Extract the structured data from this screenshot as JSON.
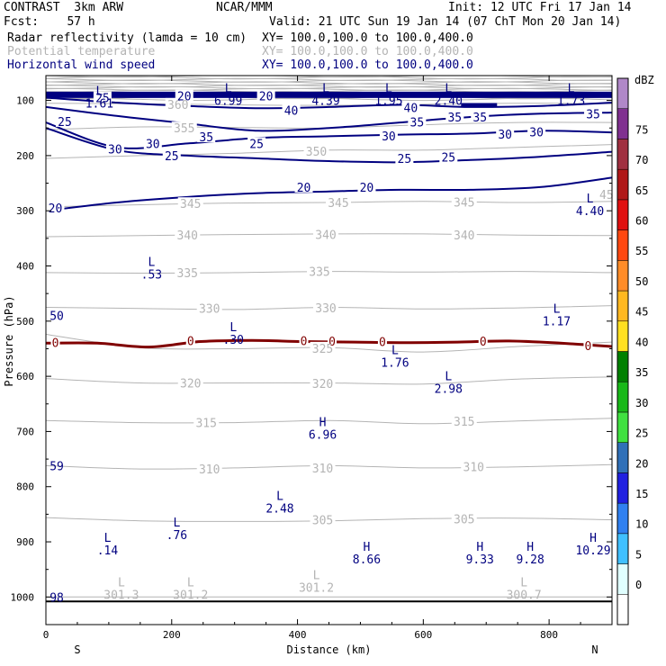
{
  "header": {
    "model": "CONTRAST  3km ARW",
    "center": "NCAR/MMM",
    "init": "Init: 12 UTC Fri 17 Jan 14",
    "fcst": "Fcst:    57 h",
    "valid": "Valid: 21 UTC Sun 19 Jan 14 (07 ChT Mon 20 Jan 14)",
    "fields": [
      {
        "name": "Radar reflectivity (lamda = 10 cm)",
        "xy": "XY= 100.0,100.0 to 100.0,400.0",
        "color": "#000000"
      },
      {
        "name": "Potential temperature",
        "xy": "XY= 100.0,100.0 to 100.0,400.0",
        "color": "#b4b4b4"
      },
      {
        "name": "Horizontal wind speed",
        "xy": "XY= 100.0,100.0 to 100.0,400.0",
        "color": "#000080"
      }
    ]
  },
  "chart_data": {
    "type": "cross-section contour",
    "xlabel": "Distance (km)",
    "ylabel": "Pressure (hPa)",
    "xlim": [
      0,
      900
    ],
    "ylim": [
      1050,
      55
    ],
    "x_ticks": [
      0,
      200,
      400,
      600,
      800
    ],
    "y_ticks": [
      100,
      200,
      300,
      400,
      500,
      600,
      700,
      800,
      900,
      1000
    ],
    "x_end_labels": {
      "left": "S",
      "right": "N"
    },
    "colorbar": {
      "unit": "dBZ",
      "levels": [
        0,
        5,
        10,
        15,
        20,
        25,
        30,
        35,
        40,
        45,
        50,
        55,
        60,
        65,
        70,
        75
      ],
      "colors": [
        "#ffffff",
        "#e0ffff",
        "#40c0ff",
        "#3080f0",
        "#2020e0",
        "#3070b8",
        "#40e040",
        "#18b818",
        "#008000",
        "#ffe020",
        "#ffb820",
        "#ff8c28",
        "#ff4810",
        "#e01010",
        "#b01818",
        "#a03040",
        "#803090",
        "#b088c8"
      ]
    },
    "theta_contours": [
      {
        "value": 301,
        "p": [
          1000,
          1000,
          1000,
          1000,
          1000,
          1000,
          1000
        ]
      },
      {
        "value": 305,
        "p": [
          856,
          862,
          863,
          862,
          858,
          857,
          860
        ]
      },
      {
        "value": 310,
        "p": [
          762,
          768,
          766,
          762,
          766,
          764,
          760
        ]
      },
      {
        "value": 315,
        "p": [
          680,
          684,
          684,
          680,
          686,
          681,
          676
        ]
      },
      {
        "value": 320,
        "p": [
          604,
          612,
          612,
          612,
          614,
          605,
          601
        ]
      },
      {
        "value": 325,
        "p": [
          524,
          548,
          550,
          548,
          556,
          546,
          538
        ]
      },
      {
        "value": 330,
        "p": [
          475,
          477,
          479,
          475,
          478,
          476,
          472
        ]
      },
      {
        "value": 335,
        "p": [
          412,
          413,
          412,
          410,
          411,
          410,
          412
        ]
      },
      {
        "value": 340,
        "p": [
          347,
          345,
          343,
          342,
          342,
          344,
          345
        ]
      },
      {
        "value": 345,
        "p": [
          293,
          289,
          286,
          285,
          283,
          285,
          283
        ]
      },
      {
        "value": 350,
        "p": [
          205,
          200,
          196,
          190,
          190,
          185,
          180
        ]
      },
      {
        "value": 355,
        "p": [
          153,
          148,
          149,
          150,
          144,
          140,
          140
        ]
      },
      {
        "value": 360,
        "p": [
          105,
          106,
          108,
          109,
          107,
          105,
          106
        ]
      }
    ],
    "theta_labels": [
      {
        "text": "360",
        "x": 210,
        "p": 107
      },
      {
        "text": "355",
        "x": 220,
        "p": 150
      },
      {
        "text": "350",
        "x": 430,
        "p": 192
      },
      {
        "text": "345",
        "x": 230,
        "p": 287
      },
      {
        "text": "345",
        "x": 465,
        "p": 285
      },
      {
        "text": "345",
        "x": 665,
        "p": 284
      },
      {
        "text": "340",
        "x": 225,
        "p": 344
      },
      {
        "text": "340",
        "x": 445,
        "p": 343
      },
      {
        "text": "340",
        "x": 665,
        "p": 344
      },
      {
        "text": "335",
        "x": 225,
        "p": 412
      },
      {
        "text": "335",
        "x": 435,
        "p": 410
      },
      {
        "text": "330",
        "x": 260,
        "p": 477
      },
      {
        "text": "330",
        "x": 445,
        "p": 476
      },
      {
        "text": "325",
        "x": 440,
        "p": 549
      },
      {
        "text": "320",
        "x": 230,
        "p": 612
      },
      {
        "text": "320",
        "x": 440,
        "p": 613
      },
      {
        "text": "315",
        "x": 255,
        "p": 684
      },
      {
        "text": "315",
        "x": 665,
        "p": 681
      },
      {
        "text": "310",
        "x": 260,
        "p": 768
      },
      {
        "text": "310",
        "x": 440,
        "p": 766
      },
      {
        "text": "310",
        "x": 680,
        "p": 764
      },
      {
        "text": "305",
        "x": 440,
        "p": 860
      },
      {
        "text": "305",
        "x": 665,
        "p": 858
      }
    ],
    "wind_contours": [
      {
        "value": 20,
        "p": [
          300,
          285,
          275,
          268,
          265,
          262,
          262,
          257,
          240
        ]
      },
      {
        "value": 25,
        "p": [
          150,
          190,
          200,
          205,
          210,
          212,
          208,
          202,
          193
        ]
      },
      {
        "value": 30,
        "p": [
          140,
          185,
          178,
          168,
          165,
          162,
          160,
          155,
          158
        ]
      },
      {
        "value": 35,
        "p": [
          112,
          128,
          142,
          155,
          150,
          140,
          130,
          124,
          122
        ]
      },
      {
        "value": 40,
        "p": [
          95,
          104,
          110,
          114,
          112,
          108,
          112,
          110,
          104
        ]
      }
    ],
    "wind_labels": [
      {
        "text": "20",
        "x": 15,
        "p": 295
      },
      {
        "text": "20",
        "x": 410,
        "p": 257
      },
      {
        "text": "20",
        "x": 510,
        "p": 257
      },
      {
        "text": "25",
        "x": 200,
        "p": 200
      },
      {
        "text": "25",
        "x": 335,
        "p": 178
      },
      {
        "text": "25",
        "x": 570,
        "p": 205
      },
      {
        "text": "25",
        "x": 640,
        "p": 203
      },
      {
        "text": "25",
        "x": 90,
        "p": 95
      },
      {
        "text": "25",
        "x": 30,
        "p": 138
      },
      {
        "text": "30",
        "x": 110,
        "p": 188
      },
      {
        "text": "30",
        "x": 170,
        "p": 178
      },
      {
        "text": "30",
        "x": 545,
        "p": 164
      },
      {
        "text": "30",
        "x": 730,
        "p": 161
      },
      {
        "text": "30",
        "x": 780,
        "p": 157
      },
      {
        "text": "35",
        "x": 255,
        "p": 166
      },
      {
        "text": "35",
        "x": 590,
        "p": 139
      },
      {
        "text": "35",
        "x": 650,
        "p": 130
      },
      {
        "text": "35",
        "x": 690,
        "p": 130
      },
      {
        "text": "35",
        "x": 870,
        "p": 124
      },
      {
        "text": "40",
        "x": 390,
        "p": 118
      },
      {
        "text": "40",
        "x": 580,
        "p": 113
      },
      {
        "text": "20",
        "x": 220,
        "p": 92
      },
      {
        "text": "20",
        "x": 350,
        "p": 92
      }
    ],
    "jet_core_p": 89,
    "melting_level": {
      "value": 0,
      "p": [
        540,
        540,
        547,
        537,
        535,
        537,
        538,
        539,
        538,
        536,
        540,
        546
      ],
      "labels": [
        {
          "text": "0",
          "x": 15
        },
        {
          "text": "0",
          "x": 230
        },
        {
          "text": "0",
          "x": 410
        },
        {
          "text": "0",
          "x": 455
        },
        {
          "text": "0",
          "x": 535
        },
        {
          "text": "0",
          "x": 695
        },
        {
          "text": "0",
          "x": 862
        }
      ]
    },
    "extrema": [
      {
        "type": "L",
        "value": "1.61",
        "x": 85,
        "p": 90,
        "color": "#000080"
      },
      {
        "type": "L",
        "value": "6.99",
        "x": 290,
        "p": 85,
        "color": "#000080"
      },
      {
        "type": "L",
        "value": "4.39",
        "x": 445,
        "p": 85,
        "color": "#000080"
      },
      {
        "type": "L",
        "value": "1.95",
        "x": 545,
        "p": 85,
        "color": "#000080"
      },
      {
        "type": "L",
        "value": "2.40",
        "x": 640,
        "p": 85,
        "color": "#000080"
      },
      {
        "type": "L",
        "value": "1.73",
        "x": 835,
        "p": 85,
        "color": "#000080"
      },
      {
        "type": "L",
        "value": "4.40",
        "x": 865,
        "p": 285,
        "color": "#000080"
      },
      {
        "type": "L",
        "value": ".53",
        "x": 168,
        "p": 400,
        "color": "#000080"
      },
      {
        "type": "L",
        "value": "1.17",
        "x": 812,
        "p": 485,
        "color": "#000080"
      },
      {
        "type": "L",
        "value": ".30",
        "x": 298,
        "p": 518,
        "color": "#000080"
      },
      {
        "type": "L",
        "value": "1.76",
        "x": 555,
        "p": 560,
        "color": "#000080"
      },
      {
        "type": "L",
        "value": "2.98",
        "x": 640,
        "p": 607,
        "color": "#000080"
      },
      {
        "type": "H",
        "value": "6.96",
        "x": 440,
        "p": 690,
        "color": "#000080"
      },
      {
        "type": "L",
        "value": "2.48",
        "x": 372,
        "p": 824,
        "color": "#000080"
      },
      {
        "type": "L",
        "value": ".76",
        "x": 208,
        "p": 872,
        "color": "#000080"
      },
      {
        "type": "L",
        "value": ".14",
        "x": 98,
        "p": 900,
        "color": "#000080"
      },
      {
        "type": "H",
        "value": "8.66",
        "x": 510,
        "p": 916,
        "color": "#000080"
      },
      {
        "type": "H",
        "value": "9.33",
        "x": 690,
        "p": 916,
        "color": "#000080"
      },
      {
        "type": "H",
        "value": "9.28",
        "x": 770,
        "p": 916,
        "color": "#000080"
      },
      {
        "type": "H",
        "value": "10.29",
        "x": 870,
        "p": 900,
        "color": "#000080"
      },
      {
        "type": "L",
        "value": "301.3",
        "x": 120,
        "p": 981,
        "color": "#b4b4b4"
      },
      {
        "type": "L",
        "value": "301.2",
        "x": 230,
        "p": 981,
        "color": "#b4b4b4"
      },
      {
        "type": "L",
        "value": "301.2",
        "x": 430,
        "p": 968,
        "color": "#b4b4b4"
      },
      {
        "type": "L",
        "value": "300.7",
        "x": 760,
        "p": 981,
        "color": "#b4b4b4"
      }
    ],
    "edge_labels": [
      {
        "text": "50",
        "x": 6,
        "p": 490,
        "color": "#000080"
      },
      {
        "text": "59",
        "x": 6,
        "p": 762,
        "color": "#000080"
      },
      {
        "text": "98",
        "x": 6,
        "p": 1000,
        "color": "#000080"
      },
      {
        "text": "45",
        "x": 880,
        "p": 270,
        "color": "#b4b4b4"
      }
    ]
  }
}
